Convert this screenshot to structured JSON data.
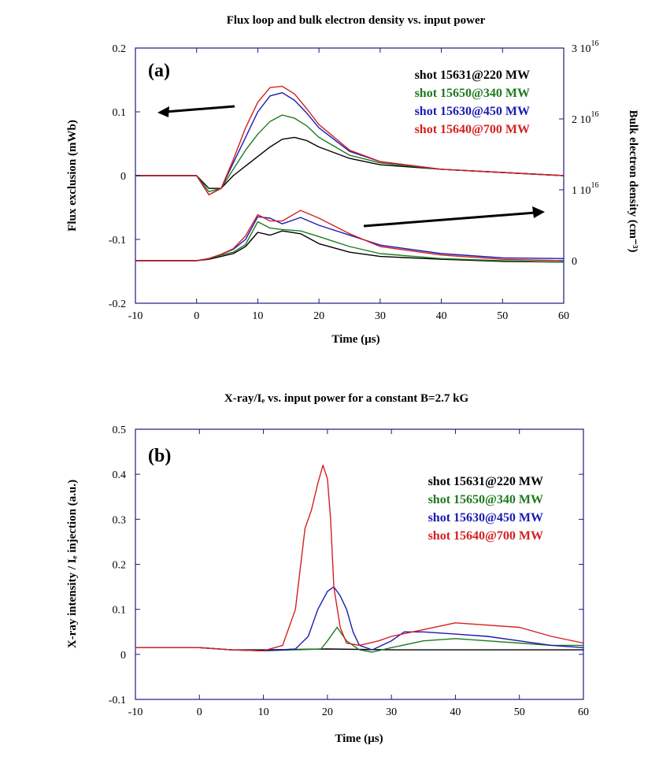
{
  "chart_data": [
    {
      "type": "line",
      "panel_label": "(a)",
      "title": "Flux loop and bulk electron density vs. input power",
      "xlabel": "Time (µs)",
      "ylabel": "Flux exclusion (mWb)",
      "y2label": "Bulk electron density (cm⁻³)",
      "xlim": [
        -10,
        60
      ],
      "ylim": [
        -0.2,
        0.2
      ],
      "y2lim": [
        -6000000000000000.0,
        3e+16
      ],
      "xticks": [
        "-10",
        "0",
        "10",
        "20",
        "30",
        "40",
        "50",
        "60"
      ],
      "yticks": [
        "-0.2",
        "-0.1",
        "0",
        "0.1",
        "0.2"
      ],
      "y2ticks": [
        "0",
        "1 10^16",
        "2 10^16",
        "3 10^16"
      ],
      "arrows": [
        "flux traces use left axis",
        "density traces use right axis"
      ],
      "grid": false,
      "legend_position": "top-right",
      "series": [
        {
          "name": "shot 15631@220 MW",
          "color": "#000000",
          "axis": "left",
          "quantity": "flux",
          "points": [
            [
              -10,
              0
            ],
            [
              0,
              0
            ],
            [
              2,
              -0.02
            ],
            [
              4,
              -0.02
            ],
            [
              6,
              0
            ],
            [
              8,
              0.015
            ],
            [
              10,
              0.03
            ],
            [
              12,
              0.045
            ],
            [
              14,
              0.057
            ],
            [
              16,
              0.06
            ],
            [
              18,
              0.055
            ],
            [
              20,
              0.045
            ],
            [
              25,
              0.027
            ],
            [
              30,
              0.017
            ],
            [
              40,
              0.01
            ],
            [
              50,
              0.005
            ],
            [
              60,
              0
            ]
          ]
        },
        {
          "name": "shot 15650@340 MW",
          "color": "#1e7a1e",
          "axis": "left",
          "quantity": "flux",
          "points": [
            [
              -10,
              0
            ],
            [
              0,
              0
            ],
            [
              2,
              -0.025
            ],
            [
              4,
              -0.02
            ],
            [
              6,
              0.01
            ],
            [
              8,
              0.04
            ],
            [
              10,
              0.065
            ],
            [
              12,
              0.085
            ],
            [
              14,
              0.095
            ],
            [
              16,
              0.09
            ],
            [
              18,
              0.078
            ],
            [
              20,
              0.06
            ],
            [
              25,
              0.032
            ],
            [
              30,
              0.02
            ],
            [
              40,
              0.01
            ],
            [
              50,
              0.005
            ],
            [
              60,
              0
            ]
          ]
        },
        {
          "name": "shot 15630@450 MW",
          "color": "#1a1ab4",
          "axis": "left",
          "quantity": "flux",
          "points": [
            [
              -10,
              0
            ],
            [
              0,
              0
            ],
            [
              2,
              -0.03
            ],
            [
              4,
              -0.02
            ],
            [
              6,
              0.02
            ],
            [
              8,
              0.06
            ],
            [
              10,
              0.1
            ],
            [
              12,
              0.125
            ],
            [
              14,
              0.13
            ],
            [
              16,
              0.118
            ],
            [
              18,
              0.098
            ],
            [
              20,
              0.075
            ],
            [
              25,
              0.038
            ],
            [
              30,
              0.022
            ],
            [
              40,
              0.01
            ],
            [
              50,
              0.005
            ],
            [
              60,
              0
            ]
          ]
        },
        {
          "name": "shot 15640@700 MW",
          "color": "#d42020",
          "axis": "left",
          "quantity": "flux",
          "points": [
            [
              -10,
              0
            ],
            [
              0,
              0
            ],
            [
              2,
              -0.03
            ],
            [
              4,
              -0.02
            ],
            [
              6,
              0.025
            ],
            [
              8,
              0.075
            ],
            [
              10,
              0.115
            ],
            [
              12,
              0.138
            ],
            [
              14,
              0.14
            ],
            [
              16,
              0.128
            ],
            [
              18,
              0.105
            ],
            [
              20,
              0.08
            ],
            [
              25,
              0.04
            ],
            [
              30,
              0.022
            ],
            [
              40,
              0.01
            ],
            [
              50,
              0.005
            ],
            [
              60,
              0
            ]
          ]
        },
        {
          "name": "shot 15631@220 MW",
          "color": "#000000",
          "axis": "right",
          "quantity": "density",
          "points": [
            [
              -10,
              0
            ],
            [
              0,
              0
            ],
            [
              2,
              200000000000000.0
            ],
            [
              4,
              600000000000000.0
            ],
            [
              6,
              1000000000000000.0
            ],
            [
              8,
              2000000000000000.0
            ],
            [
              10,
              4000000000000000.0
            ],
            [
              12,
              3600000000000000.0
            ],
            [
              14,
              4200000000000000.0
            ],
            [
              17,
              3800000000000000.0
            ],
            [
              20,
              2400000000000000.0
            ],
            [
              25,
              1200000000000000.0
            ],
            [
              30,
              600000000000000.0
            ],
            [
              40,
              200000000000000.0
            ],
            [
              50,
              -100000000000000.0
            ],
            [
              60,
              -200000000000000.0
            ]
          ]
        },
        {
          "name": "shot 15650@340 MW",
          "color": "#1e7a1e",
          "axis": "right",
          "quantity": "density",
          "points": [
            [
              -10,
              0
            ],
            [
              0,
              0
            ],
            [
              2,
              300000000000000.0
            ],
            [
              4,
              800000000000000.0
            ],
            [
              6,
              1200000000000000.0
            ],
            [
              8,
              2300000000000000.0
            ],
            [
              10,
              5500000000000000.0
            ],
            [
              12,
              4600000000000000.0
            ],
            [
              14,
              4400000000000000.0
            ],
            [
              17,
              4200000000000000.0
            ],
            [
              20,
              3400000000000000.0
            ],
            [
              25,
              2000000000000000.0
            ],
            [
              30,
              1000000000000000.0
            ],
            [
              40,
              300000000000000.0
            ],
            [
              50,
              0
            ],
            [
              60,
              -200000000000000.0
            ]
          ]
        },
        {
          "name": "shot 15630@450 MW",
          "color": "#1a1ab4",
          "axis": "right",
          "quantity": "density",
          "points": [
            [
              -10,
              0
            ],
            [
              0,
              0
            ],
            [
              2,
              300000000000000.0
            ],
            [
              4,
              900000000000000.0
            ],
            [
              6,
              1600000000000000.0
            ],
            [
              8,
              3000000000000000.0
            ],
            [
              10,
              6200000000000000.0
            ],
            [
              12,
              6000000000000000.0
            ],
            [
              14,
              5200000000000000.0
            ],
            [
              17,
              6100000000000000.0
            ],
            [
              20,
              5000000000000000.0
            ],
            [
              25,
              3600000000000000.0
            ],
            [
              30,
              2200000000000000.0
            ],
            [
              40,
              1000000000000000.0
            ],
            [
              50,
              400000000000000.0
            ],
            [
              60,
              300000000000000.0
            ]
          ]
        },
        {
          "name": "shot 15640@700 MW",
          "color": "#d42020",
          "axis": "right",
          "quantity": "density",
          "points": [
            [
              -10,
              0
            ],
            [
              0,
              0
            ],
            [
              2,
              300000000000000.0
            ],
            [
              4,
              900000000000000.0
            ],
            [
              6,
              1700000000000000.0
            ],
            [
              8,
              3500000000000000.0
            ],
            [
              10,
              6500000000000000.0
            ],
            [
              12,
              5600000000000000.0
            ],
            [
              14,
              5600000000000000.0
            ],
            [
              17,
              7100000000000000.0
            ],
            [
              20,
              6000000000000000.0
            ],
            [
              25,
              3800000000000000.0
            ],
            [
              30,
              2000000000000000.0
            ],
            [
              40,
              800000000000000.0
            ],
            [
              50,
              200000000000000.0
            ],
            [
              60,
              0
            ]
          ]
        }
      ]
    },
    {
      "type": "line",
      "panel_label": "(b)",
      "title": "X-ray/Iₑ vs. input power for a constant B=2.7 kG",
      "xlabel": "Time (µs)",
      "ylabel": "X-ray intensity / Iₑ injection (a.u.)",
      "xlim": [
        -10,
        60
      ],
      "ylim": [
        -0.1,
        0.5
      ],
      "xticks": [
        "-10",
        "0",
        "10",
        "20",
        "30",
        "40",
        "50",
        "60"
      ],
      "yticks": [
        "-0.1",
        "0",
        "0.1",
        "0.2",
        "0.3",
        "0.4",
        "0.5"
      ],
      "grid": false,
      "legend_position": "top-right",
      "series": [
        {
          "name": "shot 15631@220 MW",
          "color": "#000000",
          "points": [
            [
              -10,
              0.015
            ],
            [
              0,
              0.015
            ],
            [
              5,
              0.01
            ],
            [
              10,
              0.01
            ],
            [
              20,
              0.012
            ],
            [
              30,
              0.01
            ],
            [
              40,
              0.01
            ],
            [
              50,
              0.01
            ],
            [
              60,
              0.01
            ]
          ]
        },
        {
          "name": "shot 15650@340 MW",
          "color": "#1e7a1e",
          "points": [
            [
              -10,
              0.015
            ],
            [
              0,
              0.015
            ],
            [
              5,
              0.01
            ],
            [
              10,
              0.008
            ],
            [
              15,
              0.01
            ],
            [
              19,
              0.012
            ],
            [
              20,
              0.03
            ],
            [
              21.5,
              0.06
            ],
            [
              23,
              0.03
            ],
            [
              25,
              0.01
            ],
            [
              27,
              0.005
            ],
            [
              30,
              0.015
            ],
            [
              35,
              0.03
            ],
            [
              40,
              0.035
            ],
            [
              45,
              0.03
            ],
            [
              50,
              0.025
            ],
            [
              55,
              0.02
            ],
            [
              60,
              0.02
            ]
          ]
        },
        {
          "name": "shot 15630@450 MW",
          "color": "#1a1ab4",
          "points": [
            [
              -10,
              0.015
            ],
            [
              0,
              0.015
            ],
            [
              5,
              0.01
            ],
            [
              10,
              0.008
            ],
            [
              15,
              0.012
            ],
            [
              17,
              0.04
            ],
            [
              18.5,
              0.1
            ],
            [
              20,
              0.14
            ],
            [
              21,
              0.15
            ],
            [
              22,
              0.13
            ],
            [
              23,
              0.1
            ],
            [
              24,
              0.05
            ],
            [
              25,
              0.02
            ],
            [
              27,
              0.01
            ],
            [
              30,
              0.03
            ],
            [
              32,
              0.05
            ],
            [
              35,
              0.05
            ],
            [
              40,
              0.045
            ],
            [
              45,
              0.04
            ],
            [
              50,
              0.03
            ],
            [
              55,
              0.02
            ],
            [
              60,
              0.015
            ]
          ]
        },
        {
          "name": "shot 15640@700 MW",
          "color": "#d42020",
          "points": [
            [
              -10,
              0.015
            ],
            [
              0,
              0.015
            ],
            [
              5,
              0.01
            ],
            [
              10,
              0.008
            ],
            [
              13,
              0.02
            ],
            [
              15,
              0.1
            ],
            [
              16.5,
              0.28
            ],
            [
              17.5,
              0.32
            ],
            [
              18.5,
              0.38
            ],
            [
              19.3,
              0.42
            ],
            [
              20,
              0.39
            ],
            [
              20.5,
              0.3
            ],
            [
              21,
              0.15
            ],
            [
              22,
              0.06
            ],
            [
              23,
              0.025
            ],
            [
              25,
              0.02
            ],
            [
              28,
              0.03
            ],
            [
              30,
              0.04
            ],
            [
              35,
              0.055
            ],
            [
              40,
              0.07
            ],
            [
              45,
              0.065
            ],
            [
              50,
              0.06
            ],
            [
              55,
              0.04
            ],
            [
              60,
              0.025
            ]
          ]
        }
      ]
    }
  ]
}
